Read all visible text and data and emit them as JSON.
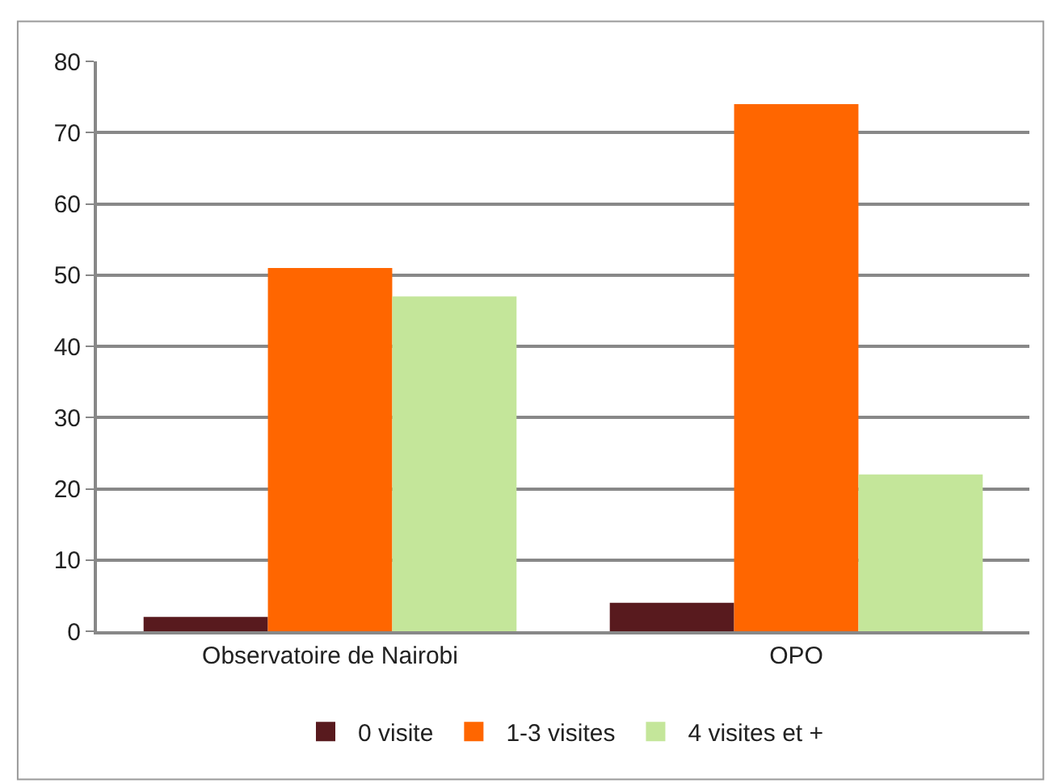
{
  "chart_data": {
    "type": "bar",
    "categories": [
      "Observatoire de Nairobi",
      "OPO"
    ],
    "series": [
      {
        "name": "0 visite",
        "color": "#581a1e",
        "values": [
          2,
          4
        ]
      },
      {
        "name": "1-3 visites",
        "color": "#ff6600",
        "values": [
          51,
          74
        ]
      },
      {
        "name": "4 visites et +",
        "color": "#c4e69a",
        "values": [
          47,
          22
        ]
      }
    ],
    "ylim": [
      0,
      80
    ],
    "yticks": [
      0,
      10,
      20,
      30,
      40,
      50,
      60,
      70,
      80
    ],
    "grid": "y",
    "legend": "bottom"
  }
}
